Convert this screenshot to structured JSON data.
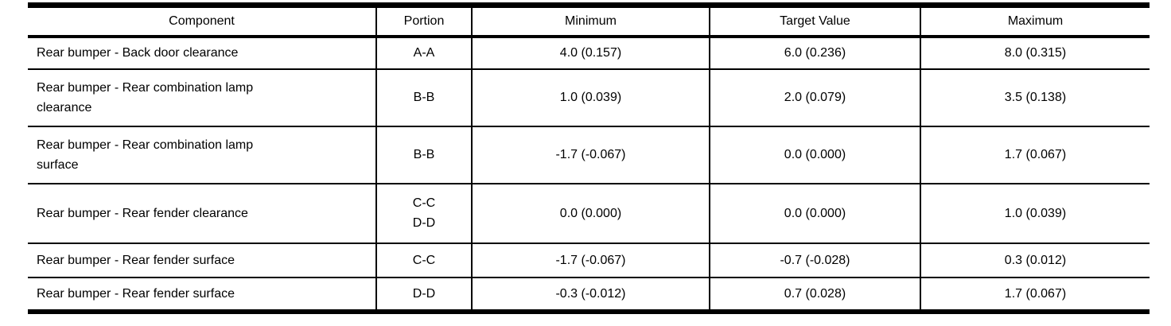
{
  "page": {
    "background_color": "#ffffff",
    "border_color": "#000000",
    "text_color": "#000000"
  },
  "table": {
    "columns": [
      "Component",
      "Portion",
      "Minimum",
      "Target Value",
      "Maximum"
    ],
    "rows": [
      {
        "component": "Rear bumper - Back door clearance",
        "portion": "A-A",
        "minimum": "4.0 (0.157)",
        "target": "6.0 (0.236)",
        "maximum": "8.0 (0.315)"
      },
      {
        "component": "Rear bumper - Rear combination lamp\nclearance",
        "portion": "B-B",
        "minimum": "1.0 (0.039)",
        "target": "2.0 (0.079)",
        "maximum": "3.5 (0.138)"
      },
      {
        "component": "Rear bumper - Rear combination lamp\nsurface",
        "portion": "B-B",
        "minimum": "-1.7 (-0.067)",
        "target": "0.0 (0.000)",
        "maximum": "1.7 (0.067)"
      },
      {
        "component": "Rear bumper - Rear fender clearance",
        "portion": "C-C\nD-D",
        "minimum": "0.0 (0.000)",
        "target": "0.0 (0.000)",
        "maximum": "1.0 (0.039)"
      },
      {
        "component": "Rear bumper - Rear fender surface",
        "portion": "C-C",
        "minimum": "-1.7 (-0.067)",
        "target": "-0.7 (-0.028)",
        "maximum": "0.3 (0.012)"
      },
      {
        "component": "Rear bumper - Rear fender surface",
        "portion": "D-D",
        "minimum": "-0.3 (-0.012)",
        "target": "0.7 (0.028)",
        "maximum": "1.7 (0.067)"
      }
    ]
  }
}
